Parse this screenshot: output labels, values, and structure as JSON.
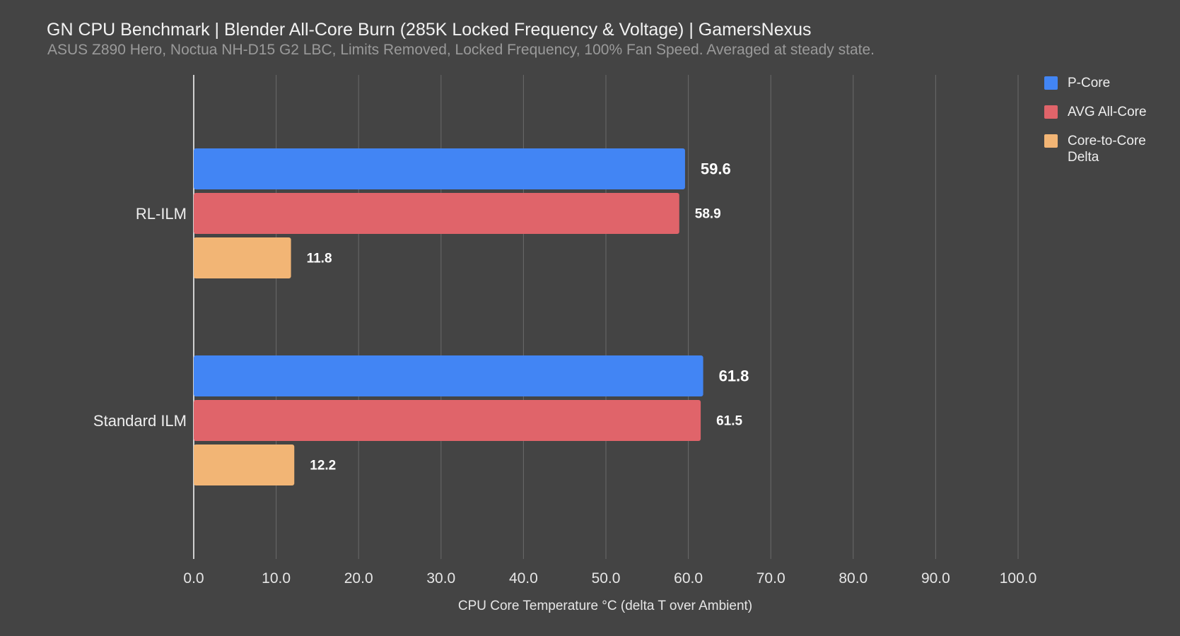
{
  "chart_data": {
    "type": "bar",
    "orientation": "horizontal",
    "title": "GN CPU Benchmark | Blender All-Core Burn (285K Locked Frequency & Voltage) | GamersNexus",
    "subtitle": "ASUS Z890 Hero, Noctua NH-D15 G2 LBC, Limits Removed, Locked Frequency, 100% Fan Speed. Averaged at steady state.",
    "xlabel": "CPU Core Temperature °C (delta T over Ambient)",
    "ylabel": "",
    "xlim": [
      0,
      100
    ],
    "x_ticks": [
      "0.0",
      "10.0",
      "20.0",
      "30.0",
      "40.0",
      "50.0",
      "60.0",
      "70.0",
      "80.0",
      "90.0",
      "100.0"
    ],
    "grid": true,
    "legend_position": "right",
    "categories": [
      "RL-ILM",
      "Standard ILM"
    ],
    "series": [
      {
        "name": "P-Core",
        "color": "#4285f4",
        "values": [
          59.6,
          61.8
        ],
        "labels": [
          "59.6",
          "61.8"
        ]
      },
      {
        "name": "AVG All-Core",
        "color": "#e0646a",
        "values": [
          58.9,
          61.5
        ],
        "labels": [
          "58.9",
          "61.5"
        ]
      },
      {
        "name": "Core-to-Core Delta",
        "color": "#f2b575",
        "values": [
          11.8,
          12.2
        ],
        "labels": [
          "11.8",
          "12.2"
        ]
      }
    ]
  }
}
